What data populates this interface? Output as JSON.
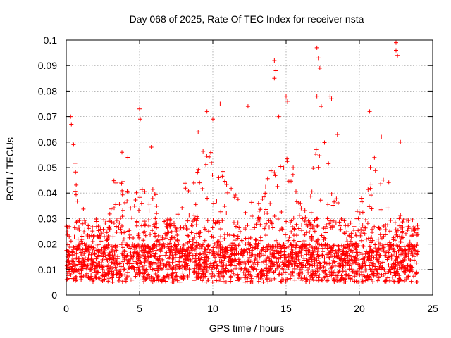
{
  "chart_data": {
    "type": "scatter",
    "title": "Day 068 of 2025, Rate Of TEC Index for receiver nsta",
    "xlabel": "GPS time / hours",
    "ylabel": "ROTI / TECUs",
    "xlim": [
      0,
      25
    ],
    "ylim": [
      0,
      0.1
    ],
    "x_ticks": [
      0,
      5,
      10,
      15,
      20,
      25
    ],
    "x_tick_labels": [
      "0",
      "5",
      "10",
      "15",
      "20",
      "25"
    ],
    "y_ticks": [
      0,
      0.01,
      0.02,
      0.03,
      0.04,
      0.05,
      0.06,
      0.07,
      0.08,
      0.09,
      0.1
    ],
    "y_tick_labels": [
      "0",
      "0.01",
      "0.02",
      "0.03",
      "0.04",
      "0.05",
      "0.06",
      "0.07",
      "0.08",
      "0.09",
      "0.1"
    ],
    "grid": true,
    "marker": "+",
    "marker_color": "#ff0000",
    "data_extent_hours": [
      0,
      24
    ],
    "typical_range": [
      0.005,
      0.03
    ],
    "envelope": [
      [
        0.0,
        0.03
      ],
      [
        0.3,
        0.045
      ],
      [
        0.5,
        0.06
      ],
      [
        1.0,
        0.04
      ],
      [
        1.5,
        0.035
      ],
      [
        2.0,
        0.03
      ],
      [
        2.5,
        0.025
      ],
      [
        3.0,
        0.04
      ],
      [
        3.5,
        0.05
      ],
      [
        4.0,
        0.045
      ],
      [
        4.5,
        0.038
      ],
      [
        5.0,
        0.05
      ],
      [
        5.5,
        0.04
      ],
      [
        6.0,
        0.045
      ],
      [
        6.5,
        0.03
      ],
      [
        7.0,
        0.028
      ],
      [
        7.5,
        0.04
      ],
      [
        8.0,
        0.045
      ],
      [
        8.5,
        0.05
      ],
      [
        9.0,
        0.055
      ],
      [
        9.5,
        0.065
      ],
      [
        10.0,
        0.06
      ],
      [
        10.5,
        0.055
      ],
      [
        11.0,
        0.045
      ],
      [
        11.5,
        0.04
      ],
      [
        12.0,
        0.038
      ],
      [
        12.5,
        0.04
      ],
      [
        13.0,
        0.035
      ],
      [
        13.5,
        0.04
      ],
      [
        14.0,
        0.06
      ],
      [
        14.5,
        0.05
      ],
      [
        15.0,
        0.06
      ],
      [
        15.5,
        0.05
      ],
      [
        16.0,
        0.04
      ],
      [
        16.5,
        0.03
      ],
      [
        17.0,
        0.06
      ],
      [
        17.5,
        0.065
      ],
      [
        18.0,
        0.055
      ],
      [
        18.5,
        0.04
      ],
      [
        19.0,
        0.03
      ],
      [
        19.5,
        0.028
      ],
      [
        20.0,
        0.035
      ],
      [
        20.5,
        0.05
      ],
      [
        21.0,
        0.055
      ],
      [
        21.5,
        0.05
      ],
      [
        22.0,
        0.045
      ],
      [
        22.5,
        0.035
      ],
      [
        23.0,
        0.03
      ],
      [
        23.5,
        0.03
      ],
      [
        24.0,
        0.025
      ]
    ],
    "notable_points": [
      {
        "x": 0.3,
        "y": 0.07
      },
      {
        "x": 0.35,
        "y": 0.067
      },
      {
        "x": 0.5,
        "y": 0.059
      },
      {
        "x": 3.8,
        "y": 0.056
      },
      {
        "x": 4.2,
        "y": 0.054
      },
      {
        "x": 5.0,
        "y": 0.073
      },
      {
        "x": 5.05,
        "y": 0.069
      },
      {
        "x": 5.8,
        "y": 0.058
      },
      {
        "x": 9.0,
        "y": 0.064
      },
      {
        "x": 9.6,
        "y": 0.072
      },
      {
        "x": 10.0,
        "y": 0.069
      },
      {
        "x": 10.5,
        "y": 0.075
      },
      {
        "x": 12.4,
        "y": 0.074
      },
      {
        "x": 14.2,
        "y": 0.092
      },
      {
        "x": 14.3,
        "y": 0.088
      },
      {
        "x": 14.2,
        "y": 0.085
      },
      {
        "x": 14.5,
        "y": 0.07
      },
      {
        "x": 15.0,
        "y": 0.078
      },
      {
        "x": 15.1,
        "y": 0.076
      },
      {
        "x": 17.1,
        "y": 0.097
      },
      {
        "x": 17.2,
        "y": 0.093
      },
      {
        "x": 17.3,
        "y": 0.089
      },
      {
        "x": 17.1,
        "y": 0.078
      },
      {
        "x": 17.4,
        "y": 0.074
      },
      {
        "x": 18.0,
        "y": 0.078
      },
      {
        "x": 18.1,
        "y": 0.077
      },
      {
        "x": 18.5,
        "y": 0.063
      },
      {
        "x": 20.7,
        "y": 0.072
      },
      {
        "x": 21.5,
        "y": 0.062
      },
      {
        "x": 22.5,
        "y": 0.099
      },
      {
        "x": 22.5,
        "y": 0.096
      },
      {
        "x": 22.6,
        "y": 0.094
      },
      {
        "x": 22.8,
        "y": 0.06
      }
    ]
  }
}
